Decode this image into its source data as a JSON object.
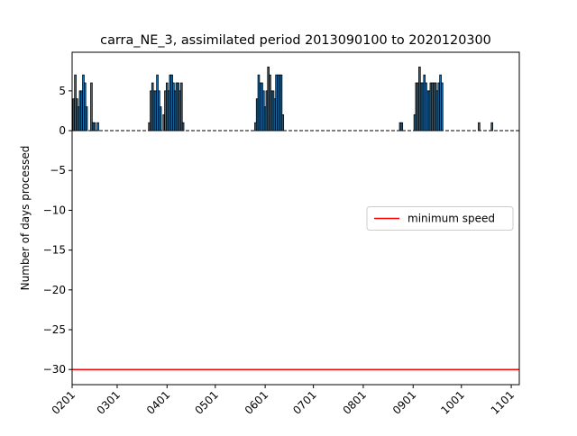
{
  "chart_data": {
    "type": "bar",
    "title": "carra_NE_3, assimilated period 2013090100 to 2020120300",
    "y_label": "Number of days processed",
    "x": [
      33,
      34,
      35,
      36,
      37,
      38,
      39,
      40,
      41,
      44,
      45,
      46,
      48,
      80,
      81,
      82,
      83,
      84,
      85,
      86,
      87,
      89,
      90,
      91,
      92,
      93,
      94,
      95,
      96,
      97,
      98,
      99,
      100,
      101,
      146,
      147,
      148,
      149,
      150,
      151,
      152,
      153,
      154,
      155,
      156,
      157,
      158,
      159,
      160,
      161,
      162,
      163,
      236,
      237,
      245,
      246,
      247,
      248,
      249,
      250,
      251,
      252,
      253,
      254,
      255,
      256,
      257,
      258,
      259,
      260,
      261,
      262,
      285,
      293
    ],
    "values": [
      4,
      7,
      4,
      3,
      5,
      5,
      7,
      6,
      3,
      6,
      1,
      1,
      1,
      1,
      5,
      6,
      5,
      5,
      7,
      5,
      3,
      2,
      5,
      6,
      5,
      7,
      7,
      6,
      5,
      6,
      6,
      5,
      6,
      1,
      1,
      4,
      7,
      6,
      6,
      5,
      3,
      5,
      8,
      7,
      5,
      5,
      4,
      7,
      7,
      7,
      7,
      2,
      1,
      1,
      2,
      6,
      6,
      8,
      6,
      6,
      7,
      6,
      5,
      5,
      6,
      6,
      6,
      6,
      5,
      6,
      7,
      6,
      1,
      1
    ],
    "color": "#1f77b4",
    "min_speed": {
      "name": "minimum speed",
      "value": -30,
      "color": "#ff0000"
    },
    "legend": "center right",
    "xlim": [
      32,
      310
    ],
    "xticks": [
      {
        "value": 32,
        "label": "0201"
      },
      {
        "value": 60,
        "label": "0301"
      },
      {
        "value": 91,
        "label": "0401"
      },
      {
        "value": 121,
        "label": "0501"
      },
      {
        "value": 152,
        "label": "0601"
      },
      {
        "value": 182,
        "label": "0701"
      },
      {
        "value": 213,
        "label": "0801"
      },
      {
        "value": 244,
        "label": "0901"
      },
      {
        "value": 274,
        "label": "1001"
      },
      {
        "value": 305,
        "label": "1101"
      }
    ],
    "ylim": [
      -31.9,
      9.85
    ],
    "yticks": [
      {
        "value": -30,
        "label": "−30"
      },
      {
        "value": -25,
        "label": "−25"
      },
      {
        "value": -20,
        "label": "−20"
      },
      {
        "value": -15,
        "label": "−15"
      },
      {
        "value": -10,
        "label": "−10"
      },
      {
        "value": -5,
        "label": "−5"
      },
      0,
      5
    ]
  }
}
